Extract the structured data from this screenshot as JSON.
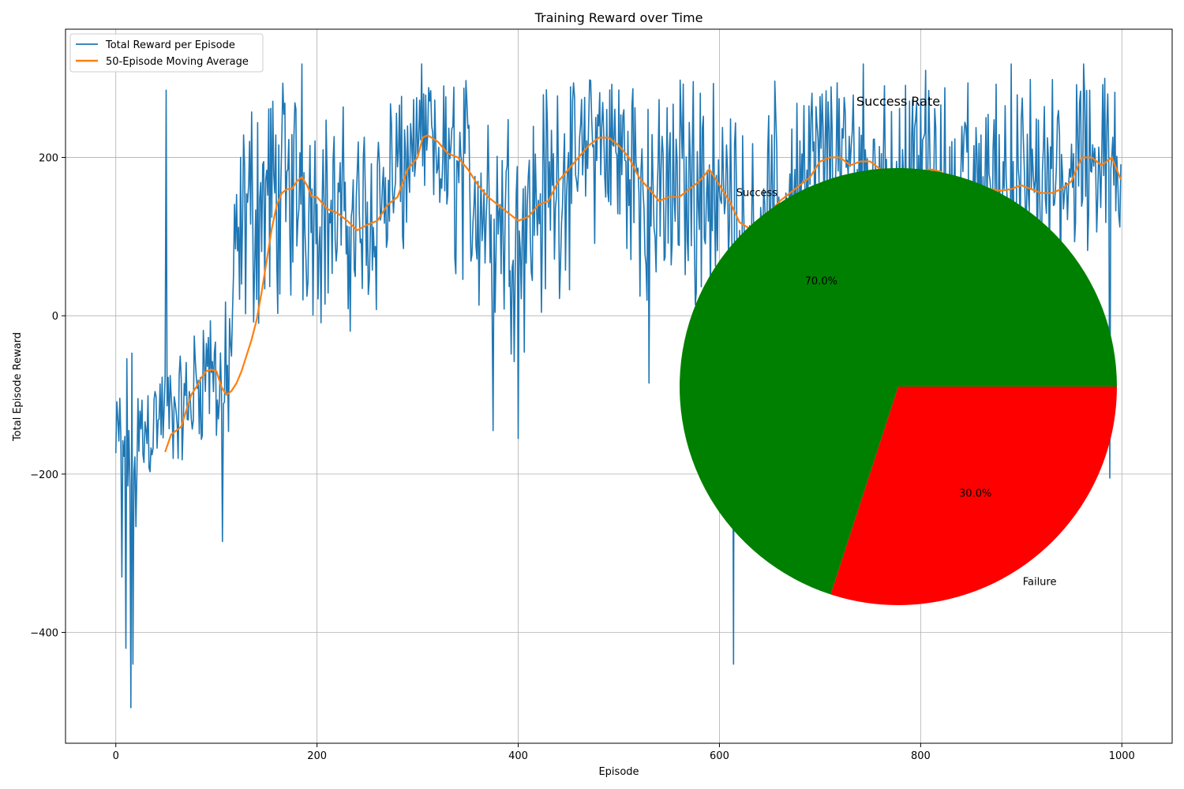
{
  "chart_data": [
    {
      "type": "line",
      "title": "Training Reward over Time",
      "xlabel": "Episode",
      "ylabel": "Total Episode Reward",
      "xlim": [
        -50,
        1050
      ],
      "ylim": [
        -540,
        362
      ],
      "xticks": [
        0,
        200,
        400,
        600,
        800,
        1000
      ],
      "xtick_labels": [
        "0",
        "200",
        "400",
        "600",
        "800",
        "1000"
      ],
      "yticks": [
        -400,
        -200,
        0,
        200
      ],
      "ytick_labels": [
        "−400",
        "−200",
        "0",
        "200"
      ],
      "grid": true,
      "legend_position": "upper-left",
      "series": [
        {
          "name": "Total Reward per Episode",
          "color": "#1f77b4",
          "width": 1.6,
          "noise": true,
          "x": [
            0,
            10,
            20,
            30,
            40,
            50,
            60,
            70,
            80,
            90,
            100,
            110,
            120,
            130,
            140,
            150,
            160,
            170,
            180,
            190,
            200,
            220,
            240,
            260,
            280,
            300,
            320,
            340,
            360,
            380,
            400,
            420,
            440,
            460,
            480,
            500,
            520,
            540,
            560,
            580,
            600,
            620,
            640,
            660,
            680,
            700,
            720,
            740,
            760,
            780,
            800,
            820,
            840,
            860,
            880,
            900,
            920,
            940,
            960,
            980,
            999
          ],
          "y": [
            -170,
            -150,
            -180,
            -140,
            -130,
            -120,
            -125,
            -115,
            -90,
            -60,
            -80,
            -100,
            60,
            130,
            140,
            145,
            150,
            155,
            160,
            150,
            140,
            120,
            115,
            140,
            175,
            230,
            210,
            180,
            150,
            130,
            120,
            140,
            175,
            210,
            225,
            200,
            170,
            150,
            160,
            175,
            150,
            120,
            115,
            140,
            170,
            200,
            200,
            185,
            175,
            165,
            180,
            175,
            160,
            170,
            175,
            160,
            155,
            175,
            205,
            195,
            165
          ],
          "amplitude": [
            60,
            90,
            110,
            70,
            60,
            60,
            55,
            65,
            70,
            70,
            80,
            90,
            110,
            120,
            130,
            130,
            125,
            120,
            120,
            115,
            110,
            110,
            110,
            110,
            110,
            110,
            110,
            110,
            120,
            130,
            130,
            120,
            120,
            110,
            100,
            110,
            120,
            120,
            120,
            120,
            130,
            130,
            120,
            110,
            110,
            100,
            100,
            100,
            100,
            100,
            100,
            100,
            110,
            110,
            110,
            110,
            110,
            110,
            100,
            110,
            100
          ],
          "spikes": [
            [
              15,
              -495
            ],
            [
              10,
              -420
            ],
            [
              17,
              -440
            ],
            [
              6,
              -330
            ],
            [
              50,
              285
            ],
            [
              106,
              -285
            ],
            [
              614,
              -440
            ],
            [
              400,
              -155
            ],
            [
              375,
              -145
            ],
            [
              530,
              -85
            ],
            [
              988,
              -205
            ],
            [
              962,
              318
            ],
            [
              890,
              318
            ],
            [
              805,
              310
            ],
            [
              743,
              318
            ],
            [
              304,
              318
            ],
            [
              185,
              318
            ]
          ]
        },
        {
          "name": "50-Episode Moving Average",
          "color": "#ff7f0e",
          "width": 2.2,
          "x": [
            49,
            55,
            60,
            65,
            70,
            75,
            80,
            85,
            90,
            95,
            100,
            105,
            110,
            115,
            120,
            125,
            130,
            135,
            140,
            145,
            150,
            155,
            160,
            165,
            170,
            175,
            180,
            185,
            190,
            195,
            200,
            210,
            220,
            230,
            240,
            250,
            260,
            270,
            280,
            290,
            300,
            305,
            310,
            320,
            330,
            340,
            350,
            360,
            370,
            380,
            390,
            400,
            410,
            420,
            430,
            440,
            450,
            460,
            470,
            480,
            490,
            500,
            510,
            520,
            530,
            540,
            550,
            560,
            570,
            580,
            590,
            600,
            610,
            620,
            630,
            640,
            650,
            660,
            670,
            680,
            690,
            700,
            710,
            720,
            730,
            740,
            750,
            760,
            770,
            780,
            790,
            800,
            810,
            820,
            830,
            840,
            850,
            860,
            870,
            880,
            890,
            900,
            910,
            920,
            930,
            940,
            950,
            960,
            970,
            980,
            990,
            999
          ],
          "y": [
            -172,
            -150,
            -145,
            -140,
            -120,
            -100,
            -90,
            -78,
            -70,
            -68,
            -70,
            -90,
            -100,
            -95,
            -85,
            -70,
            -50,
            -30,
            -5,
            30,
            70,
            110,
            140,
            155,
            160,
            160,
            170,
            175,
            165,
            150,
            150,
            135,
            130,
            120,
            108,
            115,
            120,
            140,
            150,
            185,
            200,
            225,
            228,
            220,
            205,
            200,
            185,
            165,
            150,
            140,
            130,
            120,
            125,
            140,
            145,
            170,
            185,
            200,
            215,
            225,
            225,
            215,
            200,
            175,
            160,
            145,
            150,
            150,
            160,
            170,
            185,
            165,
            145,
            118,
            110,
            120,
            130,
            145,
            155,
            165,
            175,
            195,
            200,
            200,
            190,
            195,
            195,
            185,
            175,
            170,
            180,
            182,
            185,
            182,
            170,
            165,
            165,
            160,
            160,
            158,
            160,
            165,
            160,
            155,
            155,
            160,
            170,
            200,
            200,
            190,
            200,
            172
          ]
        }
      ]
    },
    {
      "type": "pie",
      "title": "Success Rate",
      "labels": [
        "Success",
        "Failure"
      ],
      "values": [
        70,
        30
      ],
      "percent_labels": [
        "70.0%",
        "30.0%"
      ],
      "colors": [
        "#008000",
        "#ff0000"
      ],
      "start_angle": 0
    }
  ]
}
